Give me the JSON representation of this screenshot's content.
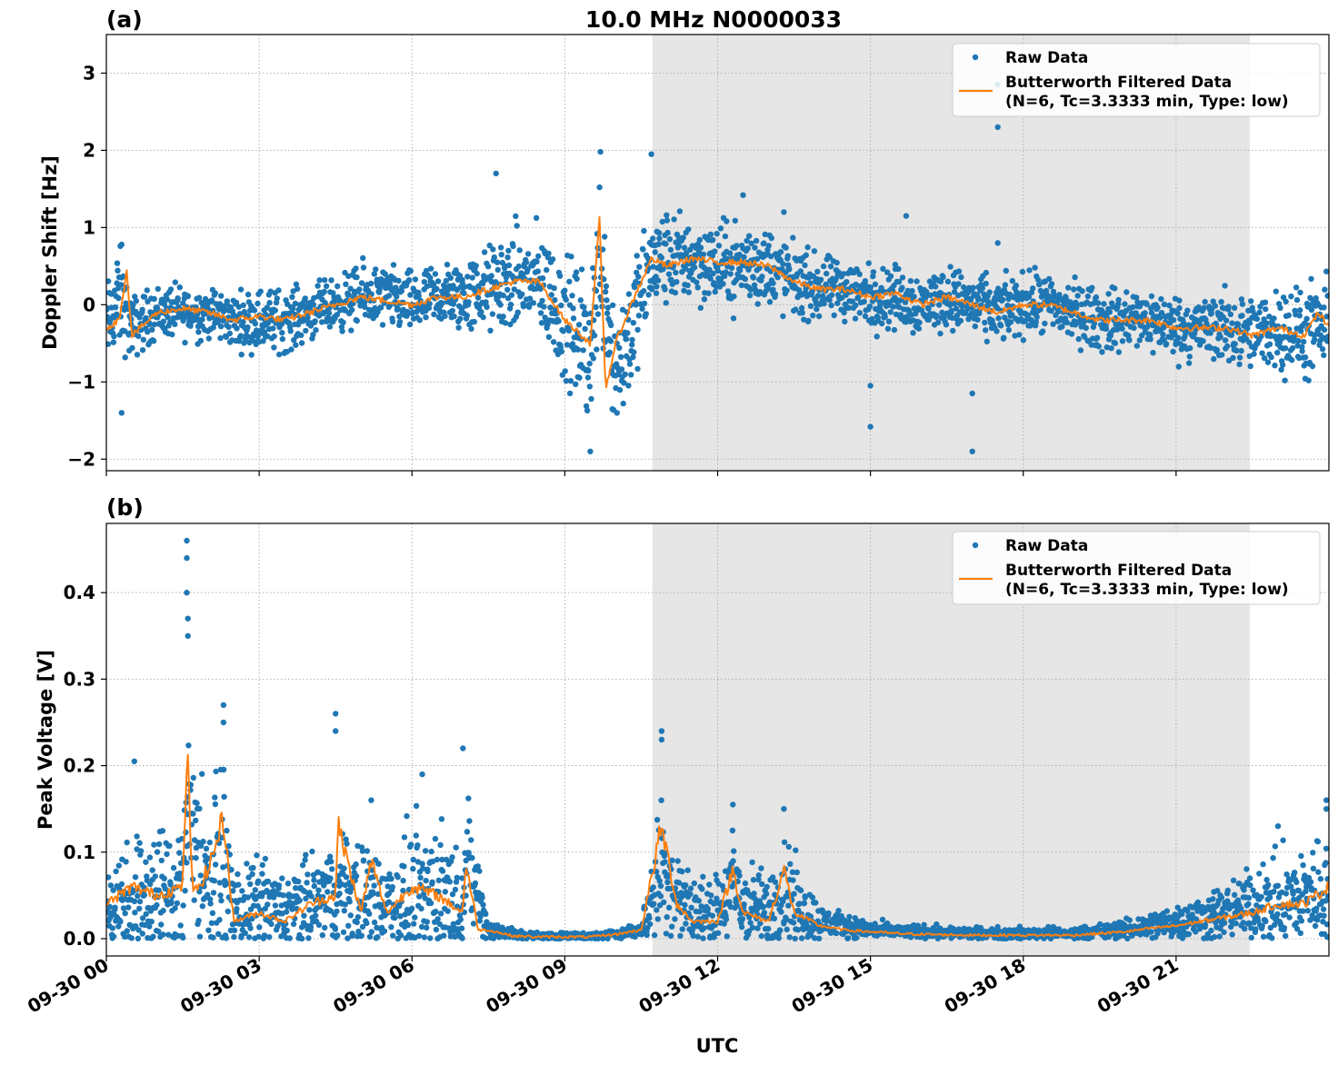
{
  "figure": {
    "title": "10.0 MHz N0000033",
    "xlabel": "UTC",
    "x_tick_labels": [
      "09-30 00",
      "09-30 03",
      "09-30 06",
      "09-30 09",
      "09-30 12",
      "09-30 15",
      "09-30 18",
      "09-30 21"
    ]
  },
  "chart_data": [
    {
      "type": "scatter",
      "panel_label": "(a)",
      "ylabel": "Doppler Shift [Hz]",
      "x_unit": "hours UTC on 09-30",
      "xlim": [
        0,
        24
      ],
      "ylim": [
        -2.15,
        3.5
      ],
      "yticks": [
        -2,
        -1,
        0,
        1,
        2,
        3
      ],
      "ytick_labels": [
        "−2",
        "−1",
        "0",
        "1",
        "2",
        "3"
      ],
      "grid": true,
      "shaded_interval": [
        10.72,
        22.45
      ],
      "legend": {
        "position": "upper-right",
        "entries": [
          "Raw Data",
          "Butterworth Filtered Data",
          "(N=6, Tc=3.3333 min, Type: low)"
        ]
      },
      "series": [
        {
          "name": "Raw Data",
          "color": "#1f77b4",
          "x": [
            0,
            0.25,
            0.5,
            1,
            1.5,
            2,
            2.5,
            3,
            3.5,
            4,
            4.5,
            5,
            5.5,
            6,
            6.5,
            7,
            7.5,
            8,
            8.5,
            9,
            9.5,
            9.7,
            10,
            10.3,
            10.7,
            11,
            11.5,
            12,
            12.5,
            13,
            13.5,
            14,
            14.5,
            15,
            15.5,
            16,
            16.5,
            17,
            17.5,
            18,
            18.5,
            19,
            19.5,
            20,
            20.5,
            21,
            21.5,
            22,
            22.5,
            23,
            23.5,
            24
          ],
          "y": [
            -0.3,
            0.1,
            -0.3,
            -0.1,
            -0.1,
            -0.1,
            -0.2,
            -0.2,
            -0.2,
            -0.1,
            0.0,
            0.1,
            0.1,
            0.0,
            0.1,
            0.1,
            0.2,
            0.3,
            0.3,
            -0.2,
            -0.6,
            0.7,
            -0.9,
            -0.3,
            0.5,
            0.6,
            0.6,
            0.5,
            0.5,
            0.5,
            0.3,
            0.2,
            0.2,
            0.1,
            0.1,
            0.0,
            0.1,
            0.0,
            -0.1,
            0.0,
            0.0,
            -0.1,
            -0.2,
            -0.2,
            -0.2,
            -0.3,
            -0.3,
            -0.3,
            -0.4,
            -0.3,
            -0.4,
            -0.3
          ],
          "spread": [
            0.4,
            0.5,
            0.3,
            0.25,
            0.25,
            0.25,
            0.25,
            0.3,
            0.3,
            0.25,
            0.25,
            0.3,
            0.3,
            0.3,
            0.3,
            0.35,
            0.4,
            0.5,
            0.5,
            0.6,
            0.7,
            0.8,
            0.7,
            0.6,
            0.5,
            0.45,
            0.4,
            0.4,
            0.4,
            0.4,
            0.35,
            0.3,
            0.3,
            0.3,
            0.3,
            0.3,
            0.3,
            0.3,
            0.3,
            0.3,
            0.3,
            0.3,
            0.3,
            0.3,
            0.3,
            0.3,
            0.3,
            0.35,
            0.35,
            0.4,
            0.45,
            0.45
          ],
          "outliers": [
            [
              0.3,
              0.78
            ],
            [
              0.3,
              -1.4
            ],
            [
              7.65,
              1.7
            ],
            [
              9.5,
              -1.9
            ],
            [
              9.7,
              1.98
            ],
            [
              10.7,
              1.95
            ],
            [
              12.5,
              1.42
            ],
            [
              13.3,
              1.2
            ],
            [
              15,
              -1.05
            ],
            [
              15,
              -1.58
            ],
            [
              17,
              -1.15
            ],
            [
              17,
              -1.9
            ],
            [
              17.5,
              2.3
            ],
            [
              17.5,
              2.85
            ],
            [
              17.5,
              0.8
            ],
            [
              15.7,
              1.15
            ]
          ]
        },
        {
          "name": "Butterworth Filtered Data",
          "color": "#ff7f0e",
          "x": [
            0,
            0.25,
            0.4,
            0.5,
            1,
            1.5,
            2,
            2.5,
            3,
            3.5,
            4,
            4.5,
            5,
            5.5,
            6,
            6.5,
            7,
            7.5,
            8,
            8.5,
            9,
            9.5,
            9.68,
            9.8,
            10,
            10.3,
            10.7,
            11,
            11.5,
            12,
            12.5,
            13,
            13.5,
            14,
            14.5,
            15,
            15.5,
            16,
            16.5,
            17,
            17.5,
            18,
            18.5,
            19,
            19.5,
            20,
            20.5,
            21,
            21.5,
            22,
            22.5,
            23,
            23.5,
            23.8,
            24
          ],
          "y": [
            -0.3,
            -0.2,
            0.45,
            -0.4,
            -0.1,
            -0.05,
            -0.1,
            -0.2,
            -0.15,
            -0.2,
            -0.1,
            0.0,
            0.1,
            0.05,
            0.0,
            0.1,
            0.1,
            0.2,
            0.3,
            0.3,
            -0.2,
            -0.5,
            1.1,
            -1.1,
            -0.5,
            0.0,
            0.6,
            0.5,
            0.6,
            0.55,
            0.55,
            0.5,
            0.3,
            0.2,
            0.2,
            0.1,
            0.15,
            0.0,
            0.1,
            0.0,
            -0.1,
            0.0,
            0.0,
            -0.1,
            -0.2,
            -0.2,
            -0.2,
            -0.3,
            -0.3,
            -0.3,
            -0.4,
            -0.3,
            -0.4,
            -0.1,
            -0.3
          ]
        }
      ]
    },
    {
      "type": "scatter",
      "panel_label": "(b)",
      "ylabel": "Peak Voltage [V]",
      "x_unit": "hours UTC on 09-30",
      "xlim": [
        0,
        24
      ],
      "ylim": [
        -0.02,
        0.48
      ],
      "yticks": [
        0.0,
        0.1,
        0.2,
        0.3,
        0.4
      ],
      "ytick_labels": [
        "0.0",
        "0.1",
        "0.2",
        "0.3",
        "0.4"
      ],
      "grid": true,
      "shaded_interval": [
        10.72,
        22.45
      ],
      "legend": {
        "position": "upper-right",
        "entries": [
          "Raw Data",
          "Butterworth Filtered Data",
          "(N=6, Tc=3.3333 min, Type: low)"
        ]
      },
      "series": [
        {
          "name": "Raw Data",
          "color": "#1f77b4",
          "x": [
            0,
            0.5,
            1,
            1.5,
            1.6,
            2,
            2.3,
            2.5,
            3,
            3.5,
            4,
            4.5,
            5,
            5.5,
            6,
            6.5,
            7,
            7.1,
            7.5,
            8,
            8.5,
            9,
            9.5,
            10,
            10.5,
            10.9,
            11.2,
            11.5,
            12,
            12.3,
            12.5,
            13,
            13.3,
            13.5,
            14,
            14.5,
            15,
            15.5,
            16,
            17,
            18,
            19,
            20,
            20.5,
            21,
            21.5,
            22,
            22.5,
            23,
            23.5,
            24
          ],
          "y": [
            0.04,
            0.05,
            0.05,
            0.06,
            0.15,
            0.06,
            0.1,
            0.03,
            0.04,
            0.03,
            0.04,
            0.05,
            0.05,
            0.04,
            0.05,
            0.06,
            0.04,
            0.09,
            0.01,
            0.005,
            0.003,
            0.003,
            0.003,
            0.005,
            0.01,
            0.08,
            0.05,
            0.03,
            0.03,
            0.06,
            0.04,
            0.03,
            0.06,
            0.04,
            0.02,
            0.015,
            0.01,
            0.008,
            0.008,
            0.006,
            0.006,
            0.006,
            0.01,
            0.015,
            0.02,
            0.025,
            0.03,
            0.04,
            0.04,
            0.05,
            0.06
          ],
          "spread": [
            0.04,
            0.05,
            0.06,
            0.07,
            0.1,
            0.06,
            0.07,
            0.03,
            0.04,
            0.03,
            0.04,
            0.05,
            0.05,
            0.04,
            0.06,
            0.06,
            0.04,
            0.05,
            0.01,
            0.005,
            0.003,
            0.003,
            0.003,
            0.004,
            0.006,
            0.07,
            0.04,
            0.03,
            0.03,
            0.05,
            0.04,
            0.03,
            0.05,
            0.04,
            0.015,
            0.01,
            0.008,
            0.006,
            0.006,
            0.005,
            0.005,
            0.005,
            0.008,
            0.012,
            0.015,
            0.02,
            0.025,
            0.03,
            0.04,
            0.04,
            0.05
          ],
          "outliers": [
            [
              1.58,
              0.46
            ],
            [
              1.58,
              0.44
            ],
            [
              1.58,
              0.4
            ],
            [
              1.6,
              0.37
            ],
            [
              1.6,
              0.35
            ],
            [
              2.3,
              0.27
            ],
            [
              2.3,
              0.25
            ],
            [
              4.5,
              0.26
            ],
            [
              4.5,
              0.24
            ],
            [
              5.2,
              0.16
            ],
            [
              6.2,
              0.19
            ],
            [
              7.0,
              0.22
            ],
            [
              10.9,
              0.24
            ],
            [
              10.9,
              0.23
            ],
            [
              12.3,
              0.155
            ],
            [
              13.3,
              0.15
            ],
            [
              0.55,
              0.205
            ],
            [
              23.95,
              0.16
            ],
            [
              23.95,
              0.15
            ],
            [
              23,
              0.13
            ]
          ]
        },
        {
          "name": "Butterworth Filtered Data",
          "color": "#ff7f0e",
          "x": [
            0,
            0.5,
            1,
            1.5,
            1.58,
            1.7,
            2,
            2.3,
            2.5,
            3,
            3.5,
            4,
            4.5,
            4.55,
            5,
            5.2,
            5.5,
            6,
            6.5,
            7,
            7.05,
            7.3,
            7.5,
            8,
            8.5,
            9,
            9.5,
            10,
            10.5,
            10.9,
            11.2,
            11.5,
            12,
            12.3,
            12.5,
            13,
            13.3,
            13.5,
            14,
            14.5,
            15,
            15.5,
            16,
            17,
            18,
            19,
            20,
            20.5,
            21,
            21.5,
            22,
            22.5,
            23,
            23.5,
            24
          ],
          "y": [
            0.04,
            0.06,
            0.05,
            0.06,
            0.22,
            0.05,
            0.08,
            0.14,
            0.02,
            0.03,
            0.02,
            0.04,
            0.05,
            0.13,
            0.03,
            0.09,
            0.03,
            0.06,
            0.05,
            0.03,
            0.09,
            0.01,
            0.01,
            0.003,
            0.002,
            0.002,
            0.002,
            0.005,
            0.01,
            0.13,
            0.04,
            0.02,
            0.02,
            0.08,
            0.03,
            0.02,
            0.08,
            0.03,
            0.015,
            0.01,
            0.008,
            0.006,
            0.005,
            0.004,
            0.004,
            0.004,
            0.008,
            0.012,
            0.015,
            0.02,
            0.025,
            0.03,
            0.04,
            0.04,
            0.06
          ]
        }
      ]
    }
  ]
}
